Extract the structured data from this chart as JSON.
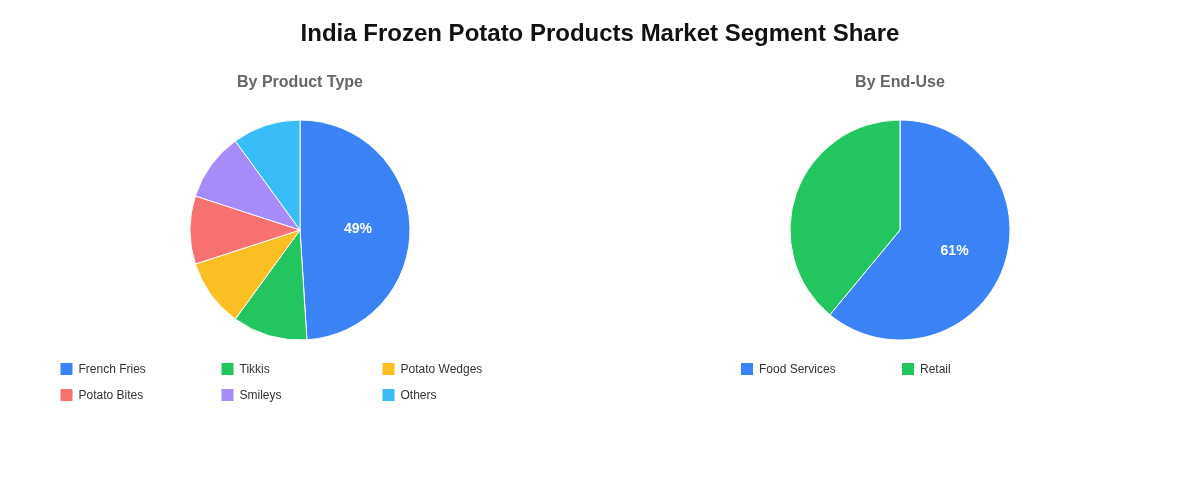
{
  "chart_data": [
    {
      "type": "pie",
      "title": "India Frozen Potato Products Market Segment Share",
      "subtitle": "By Product Type",
      "categories": [
        "French Fries",
        "Tikkis",
        "Potato Wedges",
        "Potato Bites",
        "Smileys",
        "Others"
      ],
      "values": [
        49,
        11,
        10,
        10,
        10,
        10
      ],
      "colors": [
        "#3b82f6",
        "#22c55e",
        "#fbbf24",
        "#f87171",
        "#a78bfa",
        "#38bdf8"
      ],
      "value_labels": [
        "49%",
        null,
        null,
        null,
        null,
        null
      ],
      "legend": "bottom"
    },
    {
      "type": "pie",
      "subtitle": "By End-Use",
      "categories": [
        "Food Services",
        "Retail"
      ],
      "values": [
        61,
        39
      ],
      "colors": [
        "#3b82f6",
        "#22c55e"
      ],
      "value_labels": [
        "61%",
        null
      ],
      "legend": "bottom"
    }
  ]
}
